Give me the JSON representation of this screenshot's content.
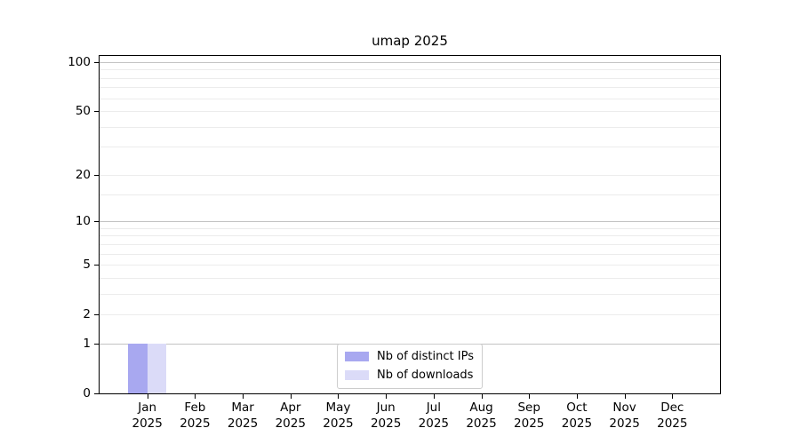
{
  "chart_data": {
    "type": "bar",
    "title": "umap 2025",
    "x_categories": [
      {
        "month": "Jan",
        "year": "2025"
      },
      {
        "month": "Feb",
        "year": "2025"
      },
      {
        "month": "Mar",
        "year": "2025"
      },
      {
        "month": "Apr",
        "year": "2025"
      },
      {
        "month": "May",
        "year": "2025"
      },
      {
        "month": "Jun",
        "year": "2025"
      },
      {
        "month": "Jul",
        "year": "2025"
      },
      {
        "month": "Aug",
        "year": "2025"
      },
      {
        "month": "Sep",
        "year": "2025"
      },
      {
        "month": "Oct",
        "year": "2025"
      },
      {
        "month": "Nov",
        "year": "2025"
      },
      {
        "month": "Dec",
        "year": "2025"
      }
    ],
    "series": [
      {
        "name": "Nb of distinct IPs",
        "color": "#a8a8f0",
        "values": [
          1,
          0,
          0,
          0,
          0,
          0,
          0,
          0,
          0,
          0,
          0,
          0
        ]
      },
      {
        "name": "Nb of downloads",
        "color": "#dbdbf8",
        "values": [
          1,
          0,
          0,
          0,
          0,
          0,
          0,
          0,
          0,
          0,
          0,
          0
        ]
      }
    ],
    "y_axis": {
      "scale": "log10(1+v)",
      "major_ticks": [
        0,
        1,
        2,
        5,
        10,
        20,
        50,
        100
      ],
      "major_tick_labels": [
        "0",
        "1",
        "2",
        "5",
        "10",
        "20",
        "50",
        "100"
      ],
      "emphasized_gridline_values": [
        1,
        10,
        100
      ],
      "minor_gridline_values": [
        3,
        4,
        6,
        7,
        8,
        9,
        15,
        30,
        40,
        60,
        70,
        80,
        90
      ],
      "ylim": [
        0,
        110
      ]
    },
    "legend": {
      "position": "lower center"
    },
    "colors": {
      "grid_major": "#c3c3c3",
      "grid_minor": "#ececec",
      "spine": "#000000",
      "background": "#ffffff"
    }
  }
}
